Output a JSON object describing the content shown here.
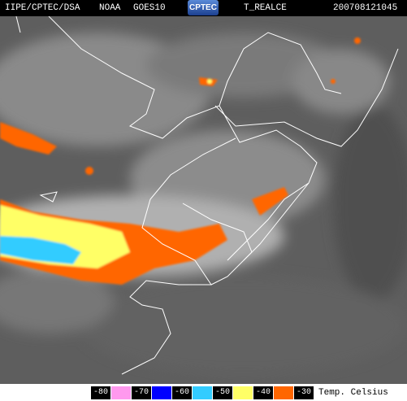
{
  "header": {
    "source": "IIPE/CPTEC/DSA",
    "satellite": "NOAA",
    "sensor": "GOES10",
    "logo": "CPTEC",
    "product": "T_REALCE",
    "timestamp": "200708121045"
  },
  "legend": {
    "entries": [
      {
        "value": -80,
        "color": "#ff99ee"
      },
      {
        "value": -70,
        "color": "#0000ff"
      },
      {
        "value": -60,
        "color": "#33ccff"
      },
      {
        "value": -50,
        "color": "#ffff66"
      },
      {
        "value": -40,
        "color": "#ff6600"
      },
      {
        "value": -30,
        "color": "#000000"
      }
    ],
    "unit": "Temp. Celsius"
  }
}
